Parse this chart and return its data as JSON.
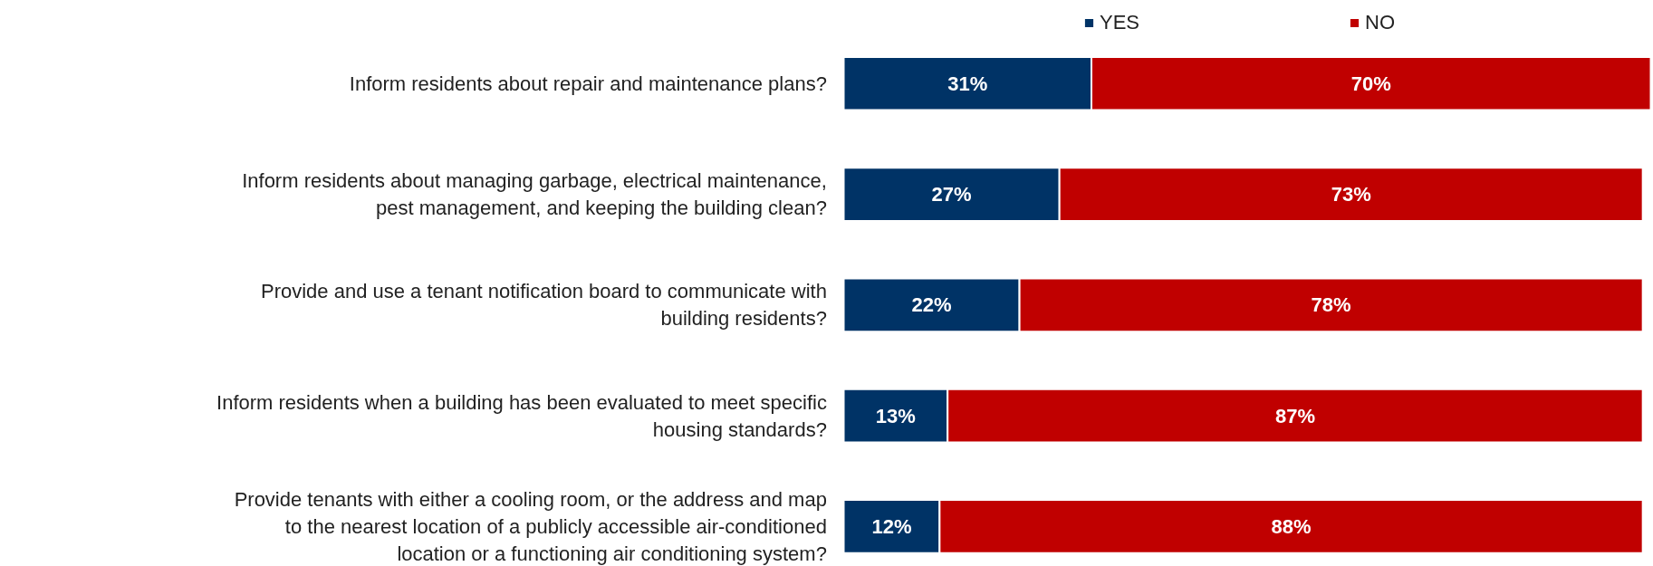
{
  "chart_data": {
    "type": "bar",
    "orientation": "horizontal",
    "stacked": true,
    "legend": "top",
    "grid": false,
    "tick_labels": "y",
    "categories": [
      "Inform residents about repair and maintenance plans?",
      "Inform residents about managing garbage, electrical maintenance,\npest management, and keeping the building clean?",
      "Provide and use a tenant notification board to communicate with\nbuilding residents?",
      "Inform residents when a building has been evaluated to meet specific\nhousing standards?",
      "Provide tenants with either a cooling room, or the address and map\nto the nearest location of a publicly accessible air-conditioned\nlocation or a functioning air conditioning system?"
    ],
    "series": [
      {
        "name": "YES",
        "color": "#003366",
        "values": [
          31,
          27,
          22,
          13,
          12
        ],
        "value_labels": [
          "31%",
          "27%",
          "22%",
          "13%",
          "12%"
        ]
      },
      {
        "name": "NO",
        "color": "#c00000",
        "values": [
          70,
          73,
          78,
          87,
          88
        ],
        "value_labels": [
          "70%",
          "73%",
          "78%",
          "87%",
          "88%"
        ]
      }
    ]
  }
}
